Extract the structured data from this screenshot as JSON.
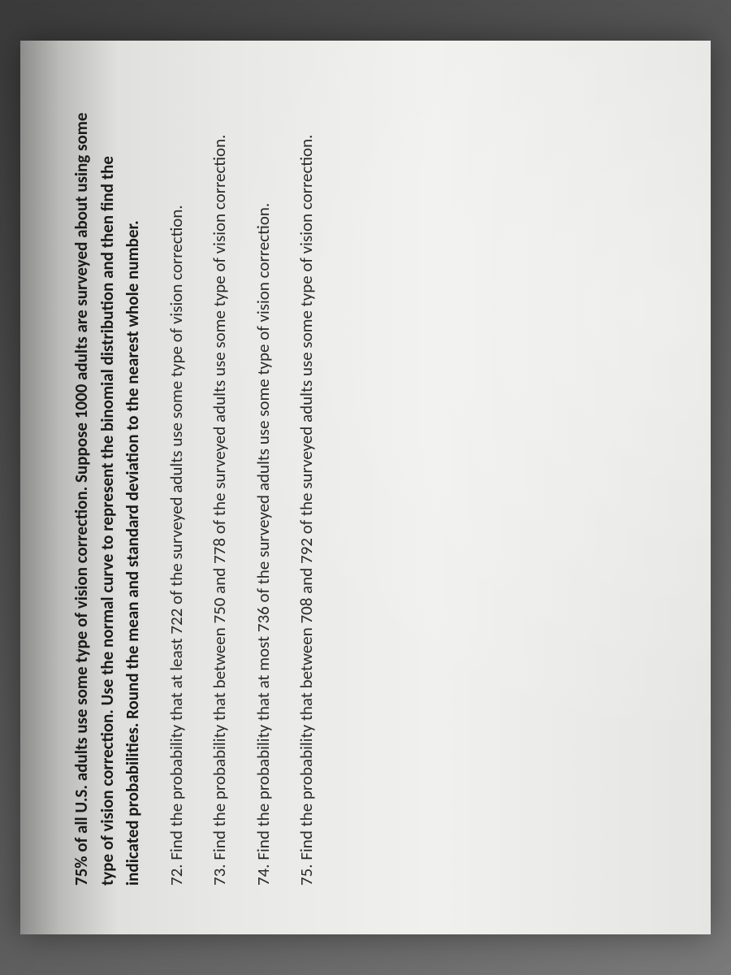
{
  "document": {
    "intro": "75% of all U.S. adults use some type of vision correction. Suppose 1000 adults are surveyed about using some type of vision correction. Use the normal curve to represent the binomial distribution and then find the indicated probabilities. Round the mean and standard deviation to the nearest whole number.",
    "questions": [
      {
        "number": "72.",
        "text": "Find the probability that at least 722 of the surveyed adults use some type of vision correction."
      },
      {
        "number": "73.",
        "text": "Find the probability that between 750 and 778 of the surveyed adults use some type of vision correction."
      },
      {
        "number": "74.",
        "text": "Find the probability that at most 736 of the surveyed adults use some type of vision correction."
      },
      {
        "number": "75.",
        "text": "Find the probability that between 708 and 792 of the surveyed adults use some type of vision correction."
      }
    ],
    "styling": {
      "font_family": "Calibri",
      "intro_fontweight": "bold",
      "body_fontsize_pt": 16,
      "text_color": "#2a2a2a",
      "paper_bg": "#e8e8e6",
      "rotation_deg": -90
    }
  }
}
